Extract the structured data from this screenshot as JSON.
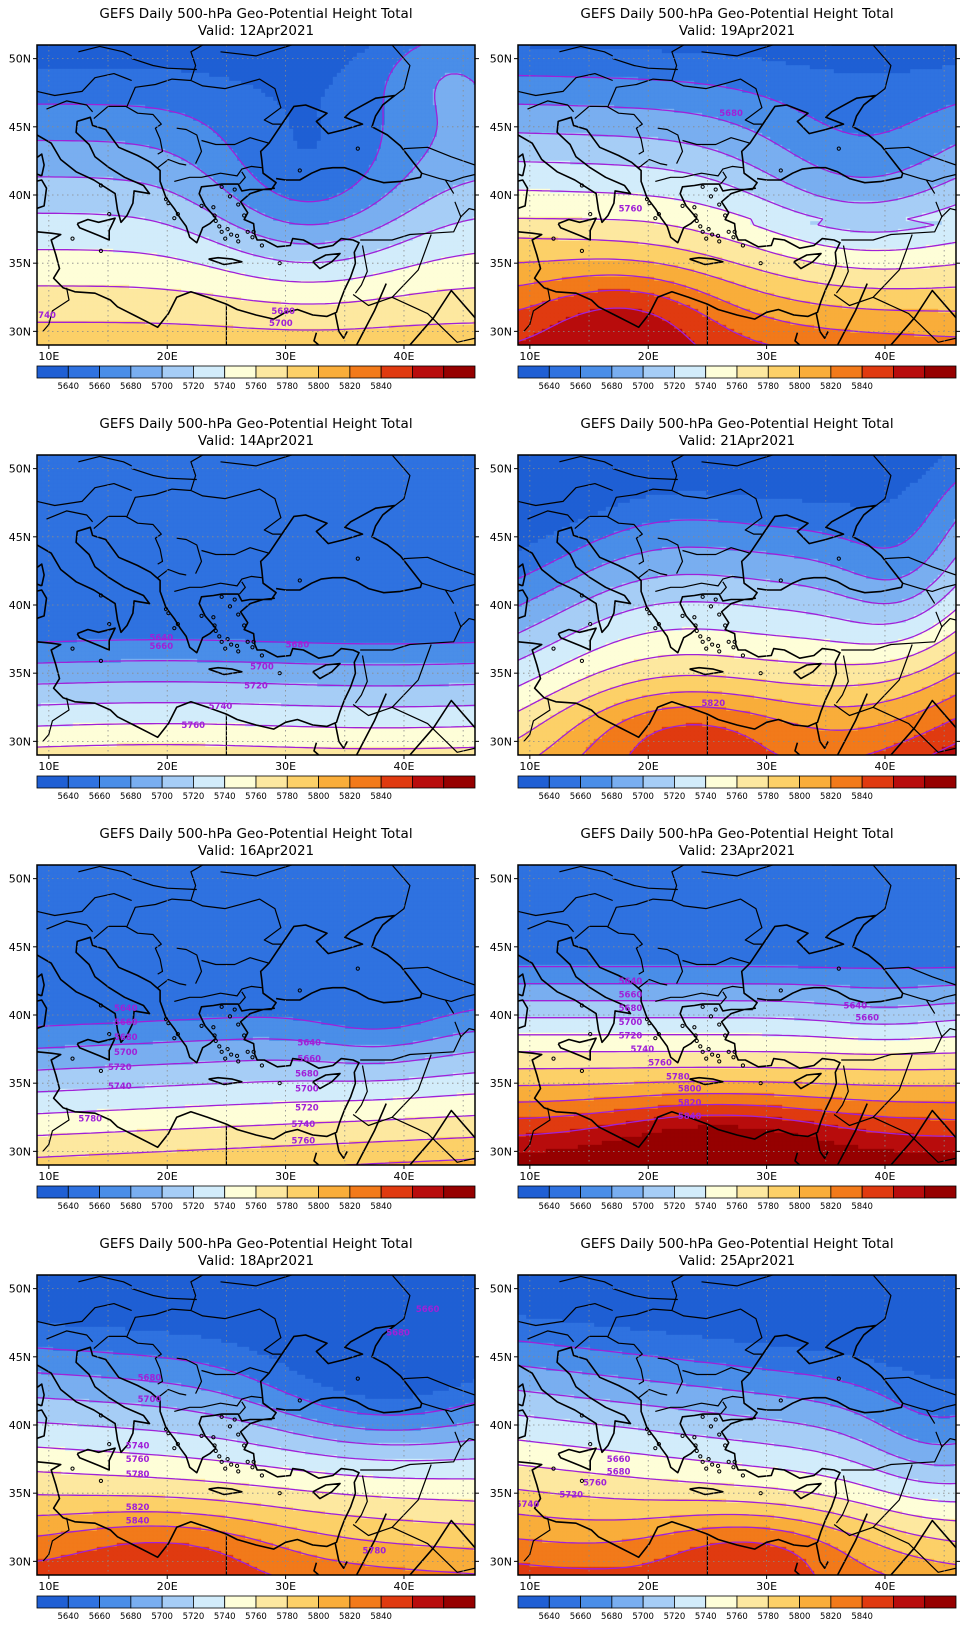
{
  "panel_title": "GEFS Daily 500-hPa Geo-Potential Height Total",
  "valid_prefix": "Valid:",
  "lat_labels": [
    "50N",
    "45N",
    "40N",
    "35N",
    "30N"
  ],
  "lon_labels": [
    "10E",
    "20E",
    "30E",
    "40E"
  ],
  "colorbar": {
    "colors": [
      "#1f5fd4",
      "#2f72e0",
      "#4a8ee8",
      "#79aef0",
      "#a6cdf6",
      "#d2ecfb",
      "#fefed8",
      "#fde8a0",
      "#fcd068",
      "#f9ad3a",
      "#f27a1a",
      "#e03a10",
      "#b80c0c",
      "#960000"
    ],
    "ticks": [
      "5640",
      "5660",
      "5680",
      "5700",
      "5720",
      "5740",
      "5760",
      "5780",
      "5800",
      "5820",
      "5840"
    ]
  },
  "panels": [
    {
      "id": "p1",
      "date": "12Apr2021",
      "labels": [
        {
          "text": "5740",
          "lon": 9.6,
          "lat": 31.2
        },
        {
          "text": "5680",
          "lon": 29.8,
          "lat": 31.5
        },
        {
          "text": "5700",
          "lon": 29.6,
          "lat": 30.6
        }
      ]
    },
    {
      "id": "p2",
      "date": "19Apr2021",
      "labels": [
        {
          "text": "5680",
          "lon": 27.0,
          "lat": 46.0
        },
        {
          "text": "5760",
          "lon": 18.5,
          "lat": 39.0
        }
      ]
    },
    {
      "id": "p3",
      "date": "14Apr2021",
      "labels": [
        {
          "text": "5640",
          "lon": 19.5,
          "lat": 37.6
        },
        {
          "text": "5660",
          "lon": 19.5,
          "lat": 37.0
        },
        {
          "text": "5680",
          "lon": 31.0,
          "lat": 37.1
        },
        {
          "text": "5700",
          "lon": 28.0,
          "lat": 35.5
        },
        {
          "text": "5720",
          "lon": 27.5,
          "lat": 34.1
        },
        {
          "text": "5740",
          "lon": 24.5,
          "lat": 32.6
        },
        {
          "text": "5760",
          "lon": 22.2,
          "lat": 31.2
        }
      ]
    },
    {
      "id": "p4",
      "date": "21Apr2021",
      "labels": [
        {
          "text": "5820",
          "lon": 25.5,
          "lat": 32.8
        }
      ]
    },
    {
      "id": "p5",
      "date": "16Apr2021",
      "labels": [
        {
          "text": "5640",
          "lon": 16.5,
          "lat": 40.5
        },
        {
          "text": "5660",
          "lon": 16.5,
          "lat": 39.5
        },
        {
          "text": "5680",
          "lon": 16.5,
          "lat": 38.4
        },
        {
          "text": "5700",
          "lon": 16.5,
          "lat": 37.3
        },
        {
          "text": "5720",
          "lon": 16.0,
          "lat": 36.2
        },
        {
          "text": "5740",
          "lon": 16.0,
          "lat": 34.8
        },
        {
          "text": "5780",
          "lon": 13.5,
          "lat": 32.4
        },
        {
          "text": "5640",
          "lon": 32.0,
          "lat": 38.0
        },
        {
          "text": "5660",
          "lon": 32.0,
          "lat": 36.8
        },
        {
          "text": "5680",
          "lon": 31.8,
          "lat": 35.7
        },
        {
          "text": "5700",
          "lon": 31.8,
          "lat": 34.6
        },
        {
          "text": "5720",
          "lon": 31.8,
          "lat": 33.2
        },
        {
          "text": "5740",
          "lon": 31.5,
          "lat": 32.0
        },
        {
          "text": "5760",
          "lon": 31.5,
          "lat": 30.8
        }
      ]
    },
    {
      "id": "p6",
      "date": "23Apr2021",
      "labels": [
        {
          "text": "5640",
          "lon": 18.5,
          "lat": 42.5
        },
        {
          "text": "5660",
          "lon": 18.5,
          "lat": 41.5
        },
        {
          "text": "5680",
          "lon": 18.5,
          "lat": 40.5
        },
        {
          "text": "5700",
          "lon": 18.5,
          "lat": 39.5
        },
        {
          "text": "5720",
          "lon": 18.5,
          "lat": 38.5
        },
        {
          "text": "5740",
          "lon": 19.5,
          "lat": 37.5
        },
        {
          "text": "5760",
          "lon": 21.0,
          "lat": 36.5
        },
        {
          "text": "5780",
          "lon": 22.5,
          "lat": 35.5
        },
        {
          "text": "5800",
          "lon": 23.5,
          "lat": 34.6
        },
        {
          "text": "5820",
          "lon": 23.5,
          "lat": 33.6
        },
        {
          "text": "5840",
          "lon": 23.5,
          "lat": 32.6
        },
        {
          "text": "5640",
          "lon": 37.5,
          "lat": 40.7
        },
        {
          "text": "5660",
          "lon": 38.5,
          "lat": 39.8
        }
      ]
    },
    {
      "id": "p7",
      "date": "18Apr2021",
      "labels": [
        {
          "text": "5660",
          "lon": 42.0,
          "lat": 48.5
        },
        {
          "text": "5680",
          "lon": 39.5,
          "lat": 46.8
        },
        {
          "text": "5680",
          "lon": 18.5,
          "lat": 43.5
        },
        {
          "text": "5700",
          "lon": 18.5,
          "lat": 41.9
        },
        {
          "text": "5740",
          "lon": 17.5,
          "lat": 38.5
        },
        {
          "text": "5760",
          "lon": 17.5,
          "lat": 37.5
        },
        {
          "text": "5780",
          "lon": 17.5,
          "lat": 36.4
        },
        {
          "text": "5820",
          "lon": 17.5,
          "lat": 34.0
        },
        {
          "text": "5840",
          "lon": 17.5,
          "lat": 33.0
        },
        {
          "text": "5780",
          "lon": 37.5,
          "lat": 30.8
        }
      ]
    },
    {
      "id": "p8",
      "date": "25Apr2021",
      "labels": [
        {
          "text": "5660",
          "lon": 17.5,
          "lat": 37.5
        },
        {
          "text": "5680",
          "lon": 17.5,
          "lat": 36.6
        },
        {
          "text": "5760",
          "lon": 15.5,
          "lat": 35.8
        },
        {
          "text": "5720",
          "lon": 13.5,
          "lat": 34.9
        },
        {
          "text": "5740",
          "lon": 9.8,
          "lat": 34.2
        }
      ]
    }
  ]
}
